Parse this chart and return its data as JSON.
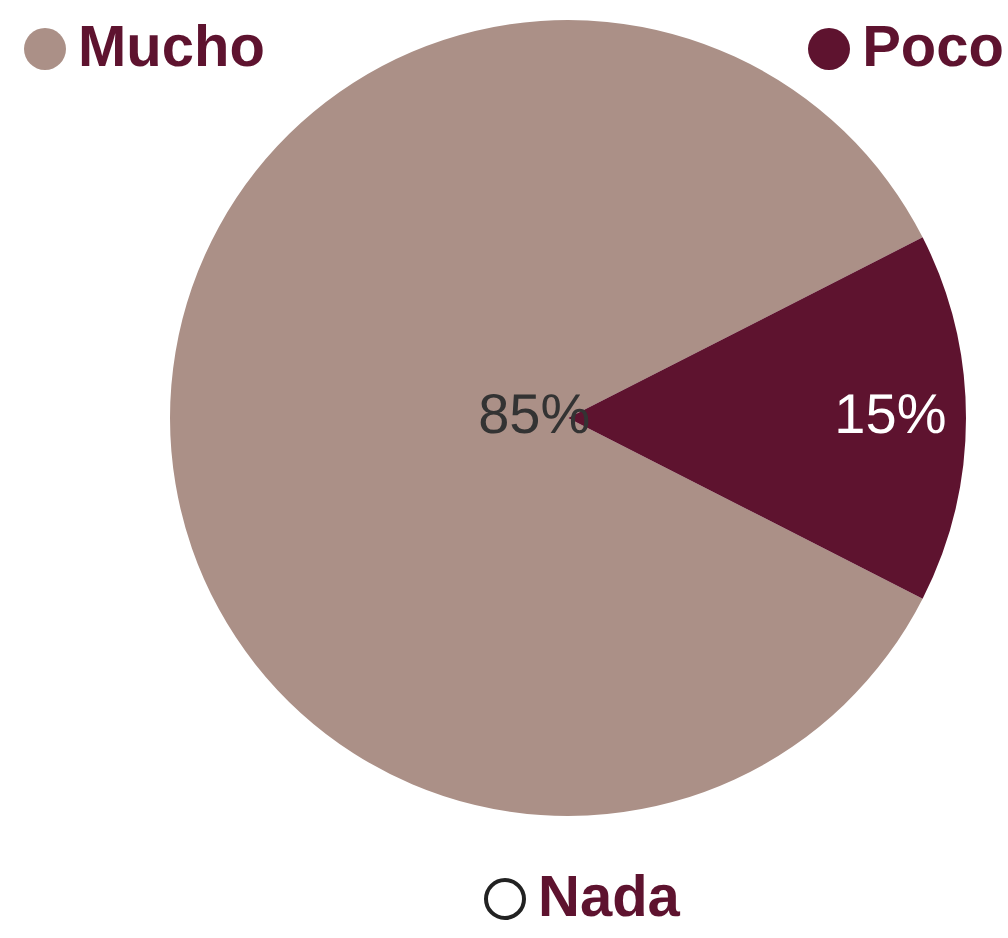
{
  "chart_data": {
    "type": "pie",
    "categories": [
      "Mucho",
      "Poco",
      "Nada"
    ],
    "values": [
      85,
      15,
      0
    ],
    "colors": [
      "#ab9087",
      "#5e132f",
      "#ffffff"
    ],
    "value_labels": [
      "85%",
      "15%",
      null
    ],
    "legend": "bottom left"
  }
}
